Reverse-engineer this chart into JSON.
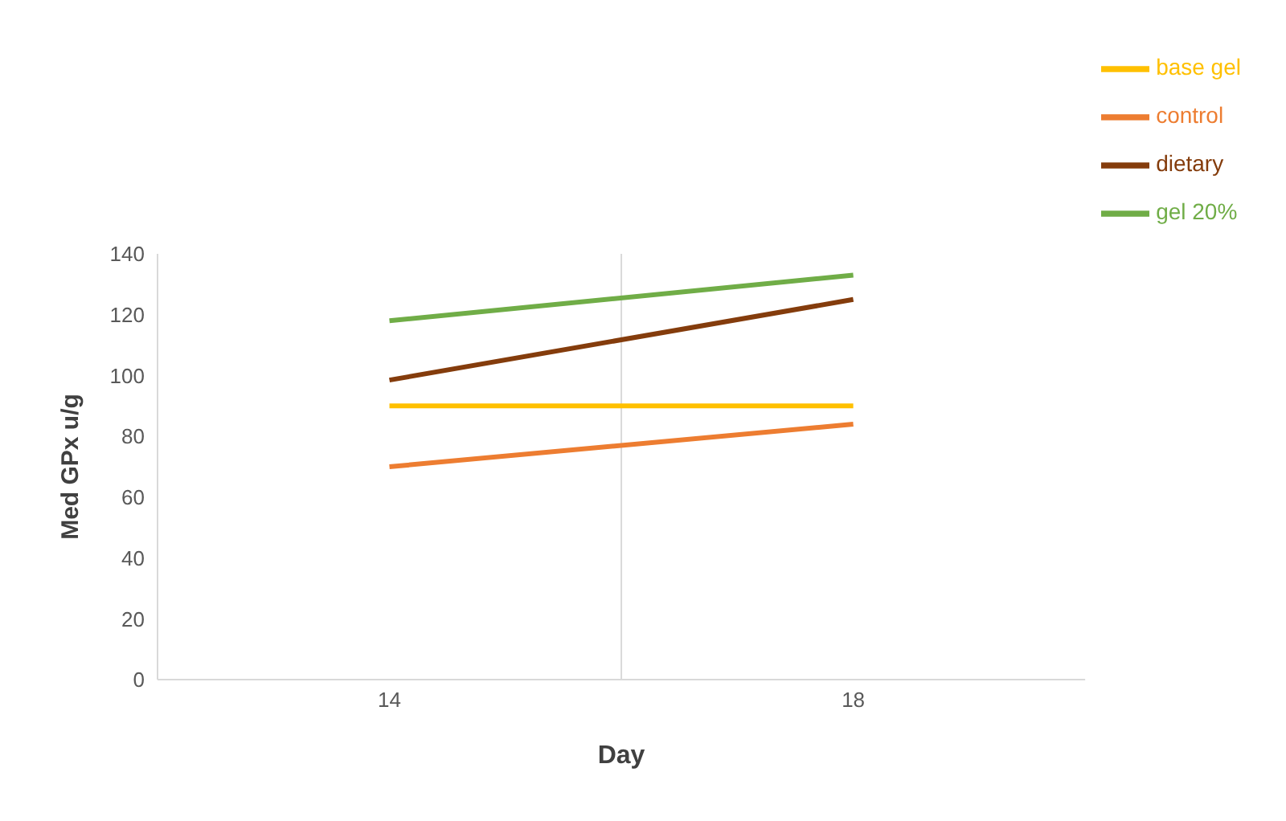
{
  "chart_data": {
    "type": "line",
    "xlabel": "Day",
    "ylabel": "Med GPx  u/g",
    "x": [
      14,
      18
    ],
    "xlim": [
      12,
      20
    ],
    "xticks": [
      14,
      18
    ],
    "ylim": [
      0,
      140
    ],
    "yticks": [
      0,
      20,
      40,
      60,
      80,
      100,
      120,
      140
    ],
    "grid": false,
    "legend": "top right",
    "marker": "none",
    "line_style": "solid",
    "ref_lines": [
      {
        "axis": "x",
        "value": 16,
        "label": null,
        "color": "#d9d9d9"
      }
    ],
    "series": [
      {
        "name": "control",
        "color": "#ed7d31",
        "values": [
          70,
          84
        ]
      },
      {
        "name": "base gel",
        "color": "#ffc000",
        "values": [
          90,
          90
        ]
      },
      {
        "name": "gel 20%",
        "color": "#70ad47",
        "values": [
          118,
          133
        ]
      },
      {
        "name": "dietary",
        "color": "#843c0c",
        "values": [
          98.5,
          125
        ]
      }
    ]
  }
}
